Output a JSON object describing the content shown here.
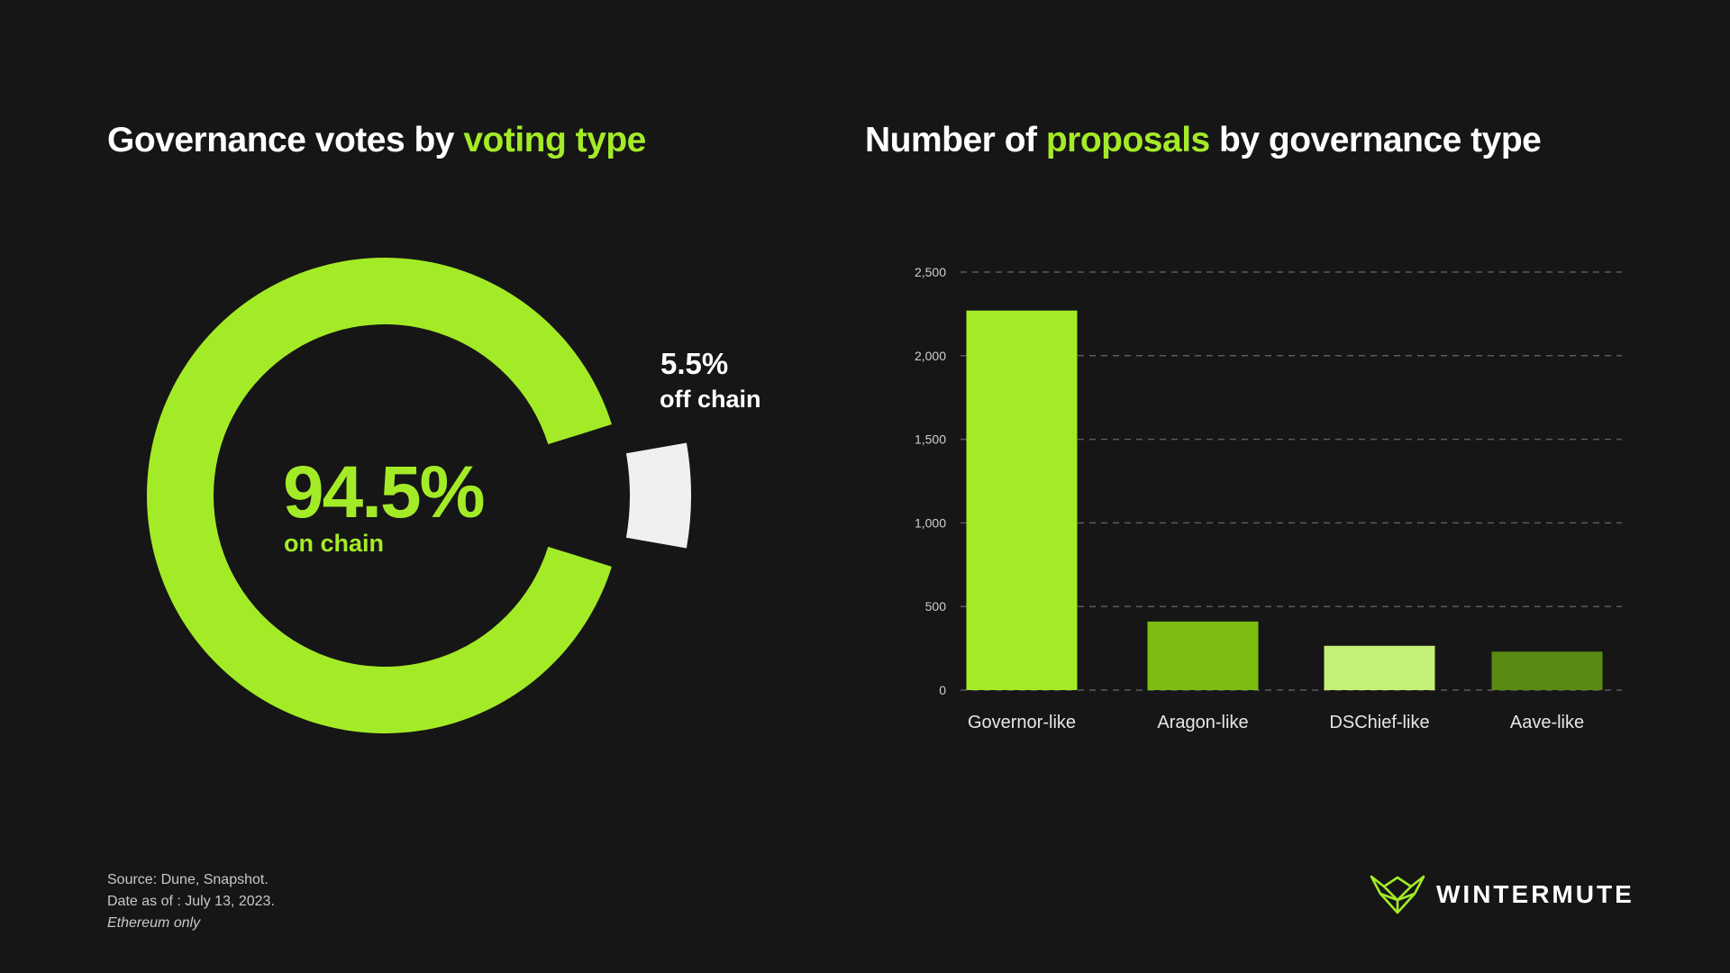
{
  "left_chart": {
    "title_prefix": "Governance votes by ",
    "title_highlight": "voting type",
    "main_value": "94.5%",
    "main_label": "on chain",
    "minor_value": "5.5%",
    "minor_label": "off chain"
  },
  "right_chart": {
    "title_prefix": "Number of ",
    "title_highlight": "proposals",
    "title_suffix": " by governance type"
  },
  "chart_data": [
    {
      "type": "pie",
      "categories": [
        "on chain",
        "off chain"
      ],
      "values": [
        94.5,
        5.5
      ],
      "unit": "%",
      "colors": [
        "#a4eb27",
        "#f0f0f0"
      ]
    },
    {
      "type": "bar",
      "categories": [
        "Governor-like",
        "Aragon-like",
        "DSChief-like",
        "Aave-like"
      ],
      "values": [
        2270,
        410,
        265,
        230
      ],
      "colors": [
        "#a4eb27",
        "#7dbd12",
        "#c5f077",
        "#5a8a12"
      ],
      "yticks": [
        "0",
        "500",
        "1,000",
        "1,500",
        "2,000",
        "2,500"
      ],
      "ylim": [
        0,
        2500
      ],
      "grid": true
    }
  ],
  "footer": {
    "source": "Source: Dune, Snapshot.",
    "date": "Date as of : July 13, 2023.",
    "note": "Ethereum only"
  },
  "brand": {
    "name": "WINTERMUTE",
    "accent": "#a4eb27"
  }
}
